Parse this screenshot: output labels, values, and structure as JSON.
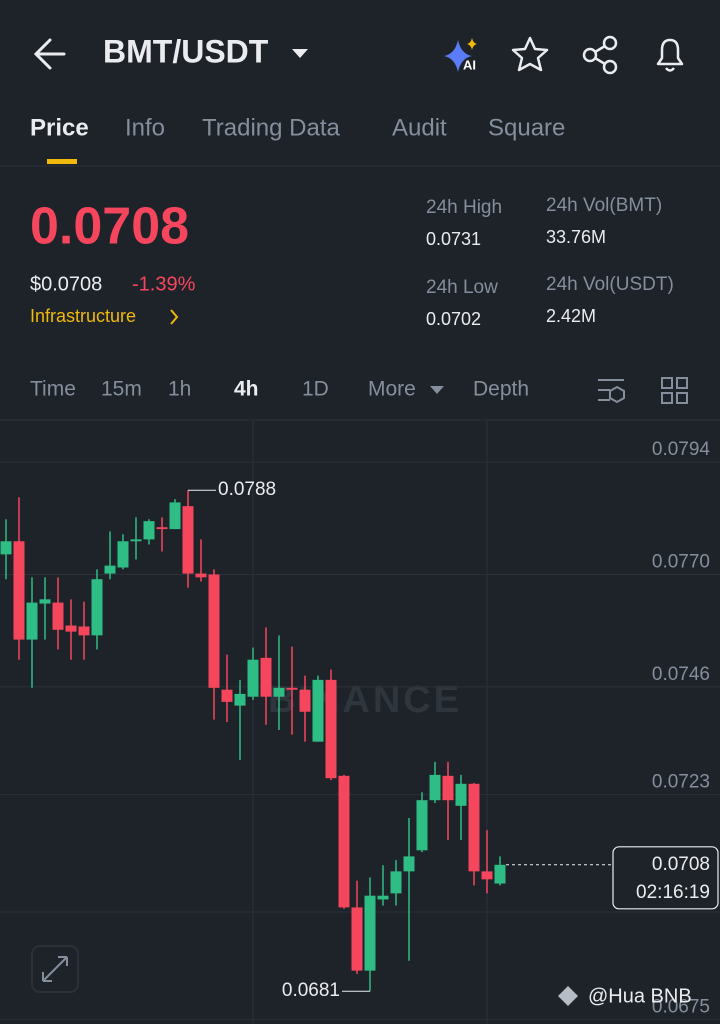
{
  "header": {
    "pair": "BMT/USDT",
    "tabs": [
      "Price",
      "Info",
      "Trading Data",
      "Audit",
      "Square"
    ]
  },
  "ticker": {
    "price": "0.0708",
    "usd_price": "$0.0708",
    "change": "-1.39%",
    "sector": "Infrastructure",
    "stats": [
      {
        "label": "24h High",
        "value": "0.0731"
      },
      {
        "label": "24h Vol(BMT)",
        "value": "33.76M"
      },
      {
        "label": "24h Low",
        "value": "0.0702"
      },
      {
        "label": "24h Vol(USDT)",
        "value": "2.42M"
      }
    ]
  },
  "intervals": [
    "Time",
    "15m",
    "1h",
    "4h",
    "1D",
    "More",
    "Depth"
  ],
  "chart_data": {
    "type": "candlestick",
    "open": [
      0.07743,
      0.07771,
      0.07561,
      0.07638,
      0.0764,
      0.07591,
      0.07589,
      0.0757,
      0.07702,
      0.07715,
      0.07771,
      0.07775,
      0.07801,
      0.07797,
      0.07846,
      0.07702,
      0.077,
      0.07454,
      0.0742,
      0.07439,
      0.07522,
      0.07439,
      0.07458,
      0.07454,
      0.07343,
      0.07475,
      0.0727,
      0.06989,
      0.06854,
      0.07006,
      0.07019,
      0.07066,
      0.07111,
      0.07218,
      0.0727,
      0.07206,
      0.07253,
      0.07066,
      0.0704
    ],
    "high": [
      0.07818,
      0.07865,
      0.07694,
      0.07694,
      0.07694,
      0.07647,
      0.07642,
      0.07711,
      0.07792,
      0.07786,
      0.07822,
      0.07818,
      0.07822,
      0.07861,
      0.0788,
      0.07775,
      0.07711,
      0.07529,
      0.07475,
      0.07544,
      0.07587,
      0.0757,
      0.07546,
      0.07484,
      0.07484,
      0.07497,
      0.07272,
      0.07046,
      0.07053,
      0.07079,
      0.0709,
      0.0718,
      0.07235,
      0.073,
      0.073,
      0.07272,
      0.07255,
      0.07154,
      0.07098
    ],
    "low": [
      0.0769,
      0.07518,
      0.07458,
      0.07561,
      0.0754,
      0.07518,
      0.07518,
      0.0754,
      0.0769,
      0.07711,
      0.07732,
      0.07764,
      0.07749,
      0.07797,
      0.07672,
      0.07685,
      0.0739,
      0.07385,
      0.07304,
      0.07432,
      0.07379,
      0.07368,
      0.07358,
      0.07343,
      0.07343,
      0.07261,
      0.06986,
      0.06847,
      0.0681,
      0.06993,
      0.06993,
      0.06875,
      0.07107,
      0.07212,
      0.07133,
      0.07133,
      0.07036,
      0.07019,
      0.07036
    ],
    "close": [
      0.07771,
      0.07561,
      0.0764,
      0.07647,
      0.07582,
      0.07578,
      0.0757,
      0.0769,
      0.07719,
      0.07771,
      0.07775,
      0.07814,
      0.07797,
      0.07854,
      0.07702,
      0.07694,
      0.07458,
      0.07428,
      0.07445,
      0.07518,
      0.07439,
      0.07458,
      0.07454,
      0.07407,
      0.07475,
      0.07265,
      0.06989,
      0.06854,
      0.07014,
      0.07014,
      0.07066,
      0.07098,
      0.07218,
      0.07272,
      0.07218,
      0.07253,
      0.07066,
      0.07049,
      0.0708
    ],
    "up_color": "#2ebd85",
    "down_color": "#f6465d",
    "ylim": [
      0.0674,
      0.0803
    ],
    "yticks": [
      0.0794,
      {
        "value": 0.077,
        "label": "0.0770"
      },
      0.0746,
      0.0723,
      0.0675
    ],
    "grid": true,
    "high_label": 0.0788,
    "low_label": 0.0681,
    "last_price": 0.0708,
    "countdown": "02:16:19",
    "watermark": "BINANCE"
  },
  "footer": "@Hua BNB"
}
